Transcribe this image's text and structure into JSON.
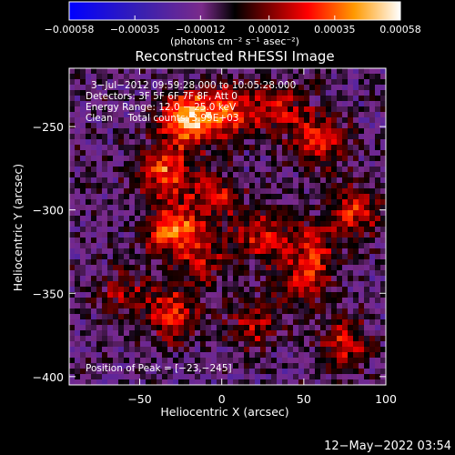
{
  "chart_data": {
    "type": "heatmap",
    "title": "Reconstructed RHESSI Image",
    "xlabel": "Heliocentric X (arcsec)",
    "ylabel": "Heliocentric Y (arcsec)",
    "xlim": [
      -93,
      100
    ],
    "ylim": [
      -405,
      -215
    ],
    "x_ticks": [
      -50,
      0,
      50,
      100
    ],
    "x_tick_labels": [
      "−50",
      "0",
      "50",
      "100"
    ],
    "y_ticks": [
      -250,
      -300,
      -350,
      -400
    ],
    "y_tick_labels": [
      "−250",
      "−300",
      "−350",
      "−400"
    ],
    "colorbar": {
      "range": [
        -0.00058,
        0.00058
      ],
      "ticks": [
        -0.00058,
        -0.00035,
        -0.00012,
        0.00012,
        0.00035,
        0.00058
      ],
      "tick_labels": [
        "−0.00058",
        "−0.00035",
        "−0.00012",
        "0.00012",
        "0.00035",
        "0.00058"
      ],
      "unit_label": "(photons cm⁻² s⁻¹ asec⁻²)"
    },
    "annotations": [
      "3−Jul−2012 09:59:28.000 to 10:05:28.000",
      "Detectors: 3F 5F 6F 7F 8F, Att 0",
      "Energy Range: 12.0 − 25.0 keV",
      "Clean     Total counts: 3.99E+03"
    ],
    "peak_label": "Position of Peak = [−23,−245]",
    "peak_position": [
      -23,
      -245
    ],
    "blobs": [
      {
        "x": -20,
        "y": -245,
        "value": 0.00058
      },
      {
        "x": -35,
        "y": -275,
        "value": 0.00042
      },
      {
        "x": 5,
        "y": -240,
        "value": 0.00038
      },
      {
        "x": 35,
        "y": -240,
        "value": 0.0003
      },
      {
        "x": 60,
        "y": -258,
        "value": 0.00036
      },
      {
        "x": -30,
        "y": -312,
        "value": 0.00048
      },
      {
        "x": -5,
        "y": -292,
        "value": 0.0003
      },
      {
        "x": 25,
        "y": -315,
        "value": 0.00033
      },
      {
        "x": 55,
        "y": -325,
        "value": 0.0003
      },
      {
        "x": 80,
        "y": -302,
        "value": 0.00033
      },
      {
        "x": -10,
        "y": -330,
        "value": 0.00025
      },
      {
        "x": -30,
        "y": -362,
        "value": 0.00035
      },
      {
        "x": -60,
        "y": -350,
        "value": 0.00022
      },
      {
        "x": 20,
        "y": -368,
        "value": 0.00028
      },
      {
        "x": 50,
        "y": -345,
        "value": 0.00025
      },
      {
        "x": 75,
        "y": -380,
        "value": 0.0003
      }
    ],
    "grid": false
  },
  "footer": {
    "timestamp": "12−May−2022 03:54"
  }
}
